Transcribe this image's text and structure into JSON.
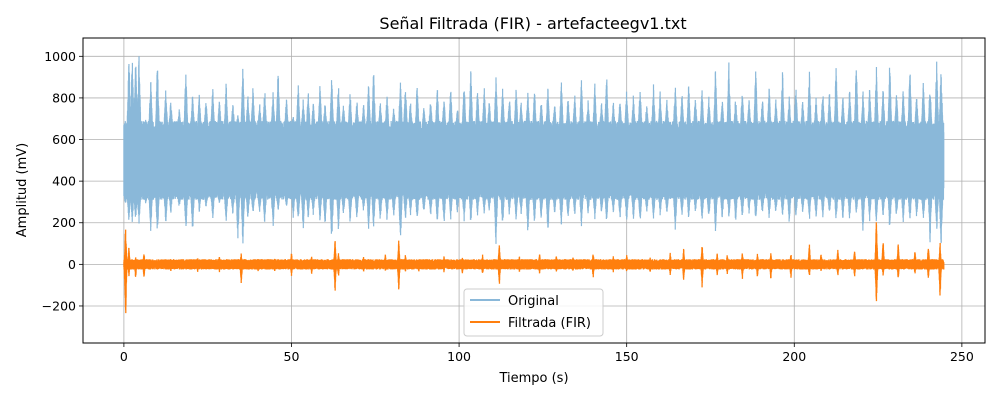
{
  "chart_data": {
    "type": "line",
    "title": "Señal Filtrada (FIR) - artefacteegv1.txt",
    "xlabel": "Tiempo (s)",
    "ylabel": "Amplitud (mV)",
    "xlim": [
      -12.2,
      256.9
    ],
    "ylim": [
      -378,
      1088
    ],
    "xticks": [
      0,
      50,
      100,
      150,
      200,
      250
    ],
    "xtick_labels": [
      "0",
      "50",
      "100",
      "150",
      "200",
      "250"
    ],
    "yticks": [
      -200,
      0,
      200,
      400,
      600,
      800,
      1000
    ],
    "ytick_labels": [
      "−200",
      "0",
      "200",
      "400",
      "600",
      "800",
      "1000"
    ],
    "grid": true,
    "legend_position": "bottom-center",
    "series": [
      {
        "name": "Original",
        "color": "#8ab8d9",
        "x_range": [
          0,
          244.6
        ],
        "baseline": 500,
        "band": [
          340,
          660
        ],
        "peak_max": 1020,
        "peak_min": 50,
        "peaks": [
          [
            0.5,
            660,
            280
          ],
          [
            1.5,
            1020,
            200
          ],
          [
            2.5,
            1020,
            200
          ],
          [
            3.5,
            1020,
            200
          ],
          [
            4.5,
            1020,
            180
          ],
          [
            6.5,
            700,
            290
          ],
          [
            8,
            900,
            150
          ],
          [
            10,
            1000,
            120
          ],
          [
            12.5,
            850,
            190
          ],
          [
            14,
            800,
            240
          ],
          [
            16.5,
            750,
            270
          ],
          [
            18.5,
            950,
            150
          ],
          [
            20.5,
            830,
            140
          ],
          [
            22.5,
            830,
            250
          ],
          [
            24.5,
            800,
            270
          ],
          [
            26.5,
            860,
            210
          ],
          [
            28.5,
            800,
            290
          ],
          [
            30.5,
            880,
            200
          ],
          [
            32.5,
            780,
            230
          ],
          [
            34,
            720,
            120
          ],
          [
            35.5,
            960,
            70
          ],
          [
            37,
            820,
            210
          ],
          [
            38.5,
            860,
            230
          ],
          [
            40.5,
            780,
            240
          ],
          [
            42,
            860,
            190
          ],
          [
            44.5,
            840,
            170
          ],
          [
            46,
            980,
            250
          ],
          [
            48.5,
            810,
            270
          ],
          [
            50.5,
            720,
            220
          ],
          [
            52,
            870,
            190
          ],
          [
            53.5,
            800,
            160
          ],
          [
            55,
            850,
            210
          ],
          [
            56.5,
            780,
            230
          ],
          [
            58.5,
            880,
            200
          ],
          [
            60,
            780,
            170
          ],
          [
            62,
            920,
            80
          ],
          [
            64,
            880,
            160
          ],
          [
            65.5,
            780,
            230
          ],
          [
            67.5,
            840,
            190
          ],
          [
            69.5,
            800,
            200
          ],
          [
            71.5,
            780,
            250
          ],
          [
            73,
            880,
            160
          ],
          [
            74.5,
            960,
            170
          ],
          [
            76.5,
            790,
            200
          ],
          [
            78.5,
            820,
            200
          ],
          [
            80.5,
            760,
            220
          ],
          [
            82.5,
            910,
            80
          ],
          [
            84,
            870,
            200
          ],
          [
            85.5,
            790,
            230
          ],
          [
            87.5,
            880,
            190
          ],
          [
            89.5,
            760,
            240
          ],
          [
            91.5,
            800,
            220
          ],
          [
            93.5,
            860,
            190
          ],
          [
            95.5,
            820,
            180
          ],
          [
            97.5,
            860,
            210
          ],
          [
            99.5,
            760,
            240
          ],
          [
            101.5,
            880,
            200
          ],
          [
            103.5,
            950,
            180
          ],
          [
            105.5,
            860,
            230
          ],
          [
            107.5,
            860,
            240
          ],
          [
            109,
            790,
            250
          ],
          [
            111,
            920,
            90
          ],
          [
            113,
            850,
            170
          ],
          [
            115,
            820,
            230
          ],
          [
            117,
            870,
            210
          ],
          [
            118.5,
            790,
            230
          ],
          [
            120.5,
            840,
            140
          ],
          [
            122.5,
            850,
            190
          ],
          [
            124.5,
            800,
            210
          ],
          [
            126.5,
            870,
            130
          ],
          [
            128.5,
            780,
            240
          ],
          [
            130.5,
            890,
            170
          ],
          [
            132.5,
            810,
            210
          ],
          [
            134.5,
            820,
            230
          ],
          [
            136.5,
            900,
            170
          ],
          [
            138.5,
            800,
            240
          ],
          [
            140.5,
            870,
            210
          ],
          [
            142.5,
            790,
            240
          ],
          [
            144,
            940,
            190
          ],
          [
            146,
            790,
            240
          ],
          [
            148,
            800,
            200
          ],
          [
            150,
            850,
            190
          ],
          [
            152,
            820,
            210
          ],
          [
            154,
            860,
            180
          ],
          [
            156,
            780,
            240
          ],
          [
            158,
            870,
            210
          ],
          [
            160,
            840,
            230
          ],
          [
            162,
            800,
            240
          ],
          [
            164.5,
            880,
            150
          ],
          [
            166.5,
            830,
            230
          ],
          [
            168.5,
            880,
            210
          ],
          [
            170.5,
            820,
            240
          ],
          [
            172.5,
            860,
            200
          ],
          [
            174.5,
            810,
            210
          ],
          [
            176.5,
            960,
            140
          ],
          [
            178.5,
            800,
            200
          ],
          [
            180.5,
            980,
            220
          ],
          [
            182.5,
            810,
            200
          ],
          [
            184.5,
            860,
            220
          ],
          [
            186.5,
            800,
            240
          ],
          [
            188.5,
            980,
            200
          ],
          [
            190.5,
            810,
            230
          ],
          [
            192.5,
            860,
            210
          ],
          [
            194.5,
            800,
            240
          ],
          [
            196.5,
            940,
            210
          ],
          [
            198.5,
            810,
            190
          ],
          [
            200.5,
            880,
            220
          ],
          [
            202.5,
            800,
            240
          ],
          [
            204.5,
            950,
            200
          ],
          [
            206.5,
            810,
            220
          ],
          [
            208.5,
            860,
            220
          ],
          [
            210.5,
            840,
            230
          ],
          [
            212.5,
            1000,
            200
          ],
          [
            214.5,
            820,
            210
          ],
          [
            216.5,
            860,
            200
          ],
          [
            218.5,
            990,
            230
          ],
          [
            220.5,
            840,
            150
          ],
          [
            222.5,
            860,
            200
          ],
          [
            224.5,
            960,
            190
          ],
          [
            226.5,
            860,
            220
          ],
          [
            228.5,
            1000,
            140
          ],
          [
            230.5,
            840,
            220
          ],
          [
            232.5,
            850,
            200
          ],
          [
            234.5,
            960,
            190
          ],
          [
            236.5,
            830,
            220
          ],
          [
            238.5,
            880,
            200
          ],
          [
            240.5,
            880,
            100
          ],
          [
            242.5,
            1000,
            150
          ],
          [
            243.8,
            960,
            80
          ]
        ]
      },
      {
        "name": "Filtrada (FIR)",
        "color": "#ff7f0e",
        "x_range": [
          0,
          244.6
        ],
        "baseline": 0,
        "band": [
          -25,
          25
        ],
        "events": [
          [
            0.5,
            200,
            -300
          ],
          [
            1.5,
            100,
            -60
          ],
          [
            3.5,
            40,
            -70
          ],
          [
            6,
            60,
            -70
          ],
          [
            14,
            30,
            -40
          ],
          [
            22,
            40,
            -40
          ],
          [
            28.5,
            40,
            -40
          ],
          [
            35,
            60,
            -110
          ],
          [
            40,
            30,
            -40
          ],
          [
            45,
            30,
            -40
          ],
          [
            50,
            60,
            -60
          ],
          [
            56,
            45,
            -50
          ],
          [
            63,
            130,
            -150
          ],
          [
            64,
            60,
            -70
          ],
          [
            71.5,
            40,
            -40
          ],
          [
            78,
            50,
            -40
          ],
          [
            82,
            120,
            -135
          ],
          [
            84,
            50,
            -40
          ],
          [
            88,
            30,
            -40
          ],
          [
            95.5,
            40,
            -40
          ],
          [
            101,
            40,
            -50
          ],
          [
            107,
            50,
            -60
          ],
          [
            112,
            110,
            -110
          ],
          [
            118,
            40,
            -40
          ],
          [
            124,
            60,
            -50
          ],
          [
            129,
            50,
            -40
          ],
          [
            134,
            40,
            -40
          ],
          [
            140,
            60,
            -70
          ],
          [
            146,
            40,
            -40
          ],
          [
            150,
            50,
            -40
          ],
          [
            157,
            40,
            -50
          ],
          [
            163,
            60,
            -60
          ],
          [
            167,
            80,
            -90
          ],
          [
            172.5,
            110,
            -125
          ],
          [
            177,
            60,
            -60
          ],
          [
            180,
            50,
            -50
          ],
          [
            184.5,
            70,
            -80
          ],
          [
            189,
            60,
            -70
          ],
          [
            193,
            60,
            -80
          ],
          [
            199,
            60,
            -70
          ],
          [
            204.5,
            110,
            -70
          ],
          [
            208,
            60,
            -40
          ],
          [
            213,
            80,
            -60
          ],
          [
            218,
            80,
            -70
          ],
          [
            224.5,
            250,
            -230
          ],
          [
            226.5,
            130,
            -60
          ],
          [
            231,
            110,
            -80
          ],
          [
            236,
            80,
            -50
          ],
          [
            240,
            100,
            -80
          ],
          [
            243.5,
            110,
            -185
          ]
        ]
      }
    ]
  }
}
